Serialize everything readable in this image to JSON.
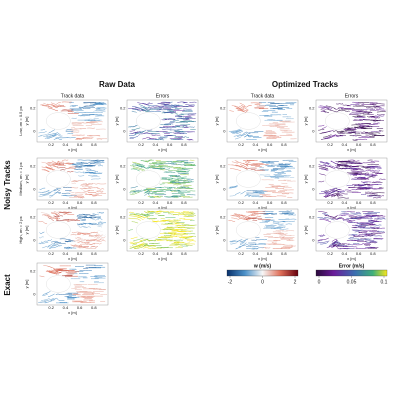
{
  "headers": {
    "raw": "Raw Data",
    "optimized": "Optimized Tracks"
  },
  "columns": [
    "Track data",
    "Errors",
    "Track data",
    "Errors"
  ],
  "groups": {
    "noisy": "Noisy Tracks",
    "exact": "Exact"
  },
  "rows": [
    "Low, σn = 0.5 px",
    "Medium, σn = 1 px",
    "High, σn = 2 px"
  ],
  "axes": {
    "x_label": "x [m]",
    "y_label": "y [m]",
    "x_ticks": [
      "0.2",
      "0.4",
      "0.6",
      "0.8"
    ],
    "y_ticks": [
      "0.2",
      "0"
    ]
  },
  "colorbars": [
    {
      "label": "w (m/s)",
      "ticks": [
        "-2",
        "0",
        "2"
      ]
    },
    {
      "label": "Error (m/s)",
      "ticks": [
        "0",
        "0.05",
        "0.1"
      ]
    }
  ]
}
